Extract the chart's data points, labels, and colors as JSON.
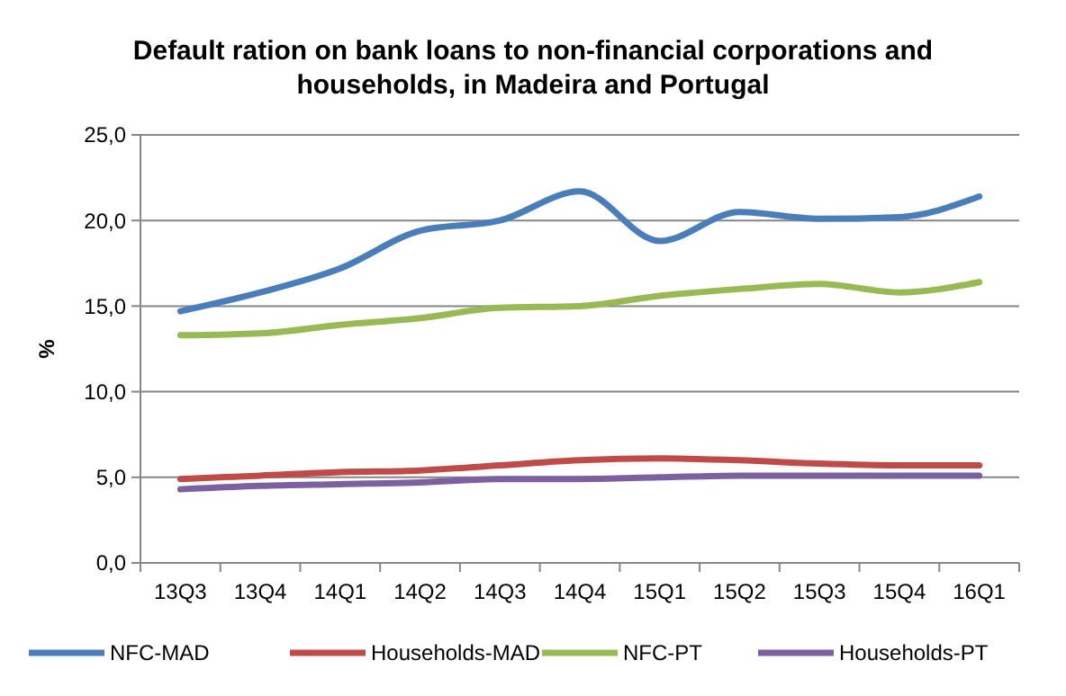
{
  "chart_data": {
    "type": "line",
    "title": "Default ration on bank loans to non-financial corporations and households, in Madeira and Portugal",
    "ylabel": "%",
    "categories": [
      "13Q3",
      "13Q4",
      "14Q1",
      "14Q2",
      "14Q3",
      "14Q4",
      "15Q1",
      "15Q2",
      "15Q3",
      "15Q4",
      "16Q1"
    ],
    "series": [
      {
        "name": "NFC-MAD",
        "color": "#4a7ebb",
        "values": [
          14.7,
          15.8,
          17.2,
          19.4,
          20.0,
          21.7,
          18.8,
          20.5,
          20.1,
          20.2,
          21.4
        ]
      },
      {
        "name": "Households-MAD",
        "color": "#be4b48",
        "values": [
          4.9,
          5.1,
          5.3,
          5.4,
          5.7,
          6.0,
          6.1,
          6.0,
          5.8,
          5.7,
          5.7
        ]
      },
      {
        "name": "NFC-PT",
        "color": "#98b954",
        "values": [
          13.3,
          13.4,
          13.9,
          14.3,
          14.9,
          15.0,
          15.6,
          16.0,
          16.3,
          15.8,
          16.4
        ]
      },
      {
        "name": "Households-PT",
        "color": "#7d60a0",
        "values": [
          4.3,
          4.5,
          4.6,
          4.7,
          4.9,
          4.9,
          5.0,
          5.1,
          5.1,
          5.1,
          5.1
        ]
      }
    ],
    "ylim": [
      0,
      25
    ],
    "yticks": [
      {
        "value": 0,
        "label": "0,0"
      },
      {
        "value": 5,
        "label": "5,0"
      },
      {
        "value": 10,
        "label": "10,0"
      },
      {
        "value": 15,
        "label": "15,0"
      },
      {
        "value": 20,
        "label": "20,0"
      },
      {
        "value": 25,
        "label": "25,0"
      }
    ],
    "grid": "y",
    "legend": "bottom",
    "line_style": "solid"
  }
}
